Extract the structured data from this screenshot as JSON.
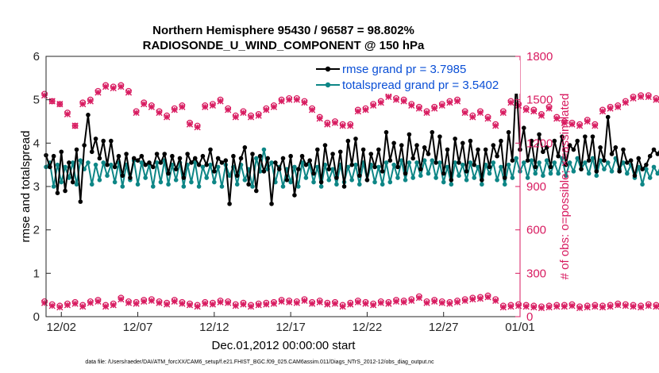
{
  "chart_data": {
    "type": "line",
    "title": "Northern Hemisphere 95430 / 96587 = 98.802%",
    "subtitle": "RADIOSONDE_U_WIND_COMPONENT @ 150 hPa",
    "xlabel": "Dec.01,2012 00:00:00 start",
    "ylabel": "rmse and totalspread",
    "ylabel_right": "# of obs: o=possible; ×=assimilated",
    "footnote": "data file: /Users/raeder/DAI/ATM_forcXX/CAM6_setup/f.e21.FHIST_BGC.f09_025.CAM6assim.011/Diags_NTrS_2012-12/obs_diag_output.nc",
    "xlim": [
      0,
      31
    ],
    "ylim": [
      0,
      6
    ],
    "ylim_right": [
      0,
      1800
    ],
    "x_ticks": [
      1,
      6,
      11,
      16,
      21,
      26,
      31
    ],
    "x_tick_labels": [
      "12/02",
      "12/07",
      "12/12",
      "12/17",
      "12/22",
      "12/27",
      "01/01"
    ],
    "y_ticks": [
      0,
      1,
      2,
      3,
      4,
      5,
      6
    ],
    "y_ticks_right": [
      0,
      300,
      600,
      900,
      1200,
      1500,
      1800
    ],
    "grid": false,
    "legend_position": "top-right",
    "colors": {
      "rmse": "#000000",
      "spread": "#0d8686",
      "obs": "#d81b60",
      "legend_text": "#0a4fd6"
    },
    "x_step": 0.25,
    "x_start": 0,
    "series": [
      {
        "name": "rmse grand pr = 3.7985",
        "axis": "left",
        "values": [
          3.72,
          3.45,
          3.7,
          2.85,
          3.8,
          2.9,
          3.55,
          3.1,
          3.85,
          2.65,
          3.95,
          4.65,
          3.8,
          4.1,
          3.65,
          4.05,
          3.5,
          4.05,
          3.45,
          3.7,
          3.25,
          3.75,
          3.2,
          3.65,
          3.6,
          3.7,
          3.5,
          3.55,
          3.45,
          3.75,
          3.55,
          3.75,
          3.3,
          3.7,
          3.4,
          3.65,
          3.2,
          3.75,
          3.55,
          3.65,
          3.5,
          3.7,
          3.5,
          3.85,
          3.35,
          3.65,
          3.55,
          3.6,
          2.6,
          3.7,
          3.25,
          3.65,
          3.9,
          3.05,
          3.75,
          2.9,
          3.7,
          3.35,
          3.65,
          2.6,
          3.55,
          3.4,
          3.65,
          3.15,
          3.7,
          2.8,
          3.4,
          3.7,
          3.5,
          3.6,
          3.3,
          3.85,
          3.1,
          3.95,
          3.4,
          3.75,
          3.2,
          3.8,
          3.0,
          4.05,
          3.5,
          4.1,
          3.25,
          3.85,
          3.15,
          3.75,
          3.45,
          3.85,
          3.35,
          4.25,
          3.6,
          4.0,
          3.45,
          3.95,
          3.3,
          4.2,
          3.65,
          3.95,
          3.4,
          3.9,
          3.75,
          4.25,
          3.55,
          4.15,
          3.3,
          3.85,
          3.15,
          4.1,
          3.55,
          4.0,
          3.35,
          4.05,
          3.5,
          3.85,
          3.15,
          3.85,
          3.45,
          3.95,
          3.7,
          4.05,
          3.2,
          4.25,
          3.6,
          5.45,
          3.85,
          4.35,
          3.6,
          4.05,
          3.45,
          4.2,
          3.8,
          3.9,
          3.45,
          4.05,
          3.7,
          4.15,
          3.5,
          3.95,
          3.85,
          4.05,
          3.4,
          4.15,
          3.6,
          4.15,
          3.35,
          3.9,
          3.6,
          4.6,
          3.75,
          3.9,
          3.35,
          3.85,
          3.55,
          3.6,
          3.25,
          3.65,
          3.4,
          3.5,
          3.7,
          3.85,
          3.75,
          3.9,
          3.65,
          4.05,
          3.8,
          4.2,
          3.6,
          3.95,
          3.7,
          4.15,
          3.65,
          3.9,
          3.55,
          4.2,
          3.6,
          3.65,
          3.5,
          3.55,
          3.5,
          3.55
        ]
      },
      {
        "name": "totalspread grand pr = 3.5402",
        "axis": "left",
        "values": [
          3.45,
          3.55,
          3.0,
          3.5,
          3.1,
          3.45,
          3.2,
          3.55,
          3.05,
          3.6,
          3.4,
          3.55,
          3.05,
          3.5,
          3.15,
          3.55,
          3.25,
          3.5,
          3.1,
          3.55,
          3.0,
          3.5,
          3.15,
          3.6,
          3.05,
          3.55,
          3.2,
          3.5,
          3.0,
          3.55,
          3.1,
          3.6,
          3.05,
          3.5,
          3.15,
          3.55,
          3.0,
          3.5,
          3.1,
          3.55,
          3.0,
          3.45,
          3.2,
          3.5,
          3.1,
          3.45,
          3.0,
          3.5,
          3.25,
          3.45,
          3.05,
          3.5,
          3.15,
          3.4,
          3.0,
          3.65,
          3.35,
          3.85,
          3.4,
          3.55,
          3.1,
          3.45,
          3.0,
          3.4,
          3.1,
          3.45,
          3.0,
          3.55,
          3.2,
          3.5,
          3.1,
          3.45,
          3.0,
          3.5,
          3.15,
          3.4,
          3.05,
          3.5,
          3.1,
          3.45,
          3.15,
          3.5,
          3.05,
          3.55,
          3.15,
          3.5,
          3.1,
          3.45,
          3.05,
          3.55,
          3.1,
          3.5,
          3.2,
          3.6,
          3.15,
          3.55,
          3.2,
          3.55,
          3.25,
          3.6,
          3.3,
          3.6,
          3.2,
          3.55,
          3.1,
          3.45,
          3.05,
          3.55,
          3.25,
          3.5,
          3.15,
          3.55,
          3.2,
          3.45,
          3.05,
          3.5,
          3.3,
          3.55,
          3.15,
          3.45,
          3.05,
          3.5,
          3.2,
          3.65,
          3.35,
          3.55,
          3.2,
          3.6,
          3.3,
          3.55,
          3.25,
          3.6,
          3.3,
          3.55,
          3.3,
          3.65,
          3.25,
          3.55,
          3.35,
          3.65,
          3.4,
          3.55,
          3.3,
          3.65,
          3.25,
          3.6,
          3.4,
          3.55,
          3.35,
          3.65,
          3.4,
          3.55,
          3.3,
          3.5,
          3.2,
          3.45,
          3.05,
          3.4,
          3.2,
          3.45,
          3.3,
          3.5,
          3.4,
          3.55,
          3.3,
          3.6,
          3.4,
          3.55,
          3.35,
          3.65,
          3.3,
          3.55,
          3.45,
          3.55,
          3.4,
          3.5,
          3.25,
          3.45,
          3.35,
          3.3
        ]
      },
      {
        "name": "possible",
        "axis": "right",
        "marker": "o",
        "x_step": 0.5,
        "x_start": -0.1,
        "values": [
          1540,
          1490,
          1470,
          1410,
          1320,
          1480,
          1500,
          1560,
          1600,
          1590,
          1600,
          1560,
          1420,
          1480,
          1460,
          1420,
          1390,
          1440,
          1460,
          1340,
          1320,
          1460,
          1470,
          1500,
          1440,
          1390,
          1420,
          1390,
          1400,
          1440,
          1460,
          1500,
          1510,
          1510,
          1490,
          1440,
          1380,
          1340,
          1350,
          1330,
          1330,
          1430,
          1440,
          1470,
          1490,
          1530,
          1510,
          1500,
          1470,
          1450,
          1420,
          1450,
          1470,
          1490,
          1500,
          1420,
          1390,
          1420,
          1380,
          1330,
          1420,
          1490,
          1470,
          1440,
          1430,
          1400,
          1450,
          1380,
          1350,
          1340,
          1330,
          1360,
          1330,
          1430,
          1450,
          1460,
          1490,
          1520,
          1530,
          1530,
          1510,
          1500,
          1480,
          1470,
          1460,
          1440,
          1420
        ]
      },
      {
        "name": "assimilated",
        "axis": "right",
        "marker": "x",
        "x_step": 0.5,
        "x_start": -0.1,
        "values": [
          1530,
          1490,
          1470,
          1400,
          1320,
          1470,
          1490,
          1550,
          1590,
          1580,
          1590,
          1550,
          1410,
          1470,
          1450,
          1410,
          1380,
          1430,
          1450,
          1330,
          1310,
          1450,
          1460,
          1490,
          1430,
          1380,
          1410,
          1380,
          1390,
          1430,
          1450,
          1490,
          1500,
          1500,
          1480,
          1430,
          1370,
          1330,
          1340,
          1320,
          1320,
          1420,
          1430,
          1460,
          1480,
          1520,
          1500,
          1490,
          1460,
          1440,
          1410,
          1440,
          1460,
          1480,
          1490,
          1410,
          1380,
          1410,
          1370,
          1320,
          1410,
          1480,
          1460,
          1430,
          1420,
          1390,
          1440,
          1370,
          1340,
          1330,
          1320,
          1350,
          1320,
          1420,
          1440,
          1450,
          1480,
          1510,
          1520,
          1520,
          1500,
          1490,
          1470,
          1460,
          1450,
          1430,
          1410
        ]
      },
      {
        "name": "possible (lower level)",
        "axis": "right",
        "marker": "o",
        "x_step": 0.5,
        "x_start": -0.1,
        "values": [
          105,
          85,
          75,
          90,
          100,
          80,
          105,
          115,
          80,
          90,
          130,
          105,
          100,
          115,
          120,
          105,
          95,
          115,
          100,
          90,
          80,
          100,
          95,
          110,
          105,
          85,
          95,
          80,
          90,
          95,
          100,
          115,
          110,
          105,
          120,
          100,
          110,
          95,
          100,
          80,
          95,
          110,
          100,
          90,
          105,
          100,
          115,
          110,
          120,
          140,
          105,
          115,
          105,
          100,
          110,
          120,
          130,
          135,
          145,
          120,
          75,
          80,
          85,
          80,
          75,
          70,
          75,
          80,
          80,
          85,
          70,
          75,
          80,
          75,
          80,
          90,
          85,
          80,
          75,
          85,
          80,
          75,
          85,
          70,
          75,
          80,
          0
        ]
      },
      {
        "name": "assimilated (lower level)",
        "axis": "right",
        "marker": "x",
        "x_step": 0.5,
        "x_start": -0.1,
        "values": [
          95,
          75,
          65,
          80,
          90,
          70,
          95,
          105,
          70,
          80,
          120,
          95,
          90,
          105,
          110,
          95,
          85,
          105,
          90,
          80,
          70,
          90,
          85,
          100,
          95,
          75,
          85,
          70,
          80,
          85,
          90,
          105,
          100,
          95,
          110,
          90,
          100,
          85,
          90,
          70,
          85,
          100,
          90,
          80,
          95,
          90,
          105,
          100,
          110,
          130,
          95,
          105,
          95,
          90,
          100,
          110,
          120,
          125,
          135,
          110,
          65,
          70,
          75,
          70,
          65,
          60,
          65,
          70,
          70,
          75,
          60,
          65,
          70,
          65,
          70,
          80,
          75,
          70,
          65,
          75,
          70,
          65,
          75,
          60,
          65,
          70,
          0
        ]
      }
    ]
  }
}
